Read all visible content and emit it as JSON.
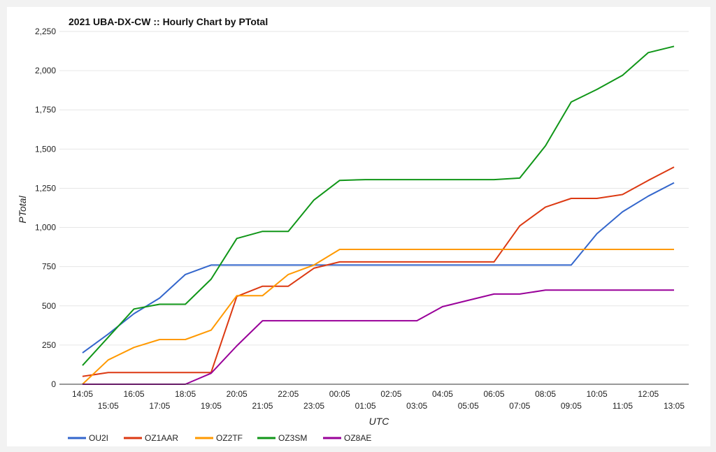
{
  "chart_data": {
    "type": "line",
    "title": "2021 UBA-DX-CW :: Hourly Chart by PTotal",
    "xlabel": "UTC",
    "ylabel": "PTotal",
    "ylim": [
      0,
      2250
    ],
    "yticks": [
      "0",
      "250",
      "500",
      "750",
      "1,000",
      "1,250",
      "1,500",
      "1,750",
      "2,000",
      "2,250"
    ],
    "grid": true,
    "legend_position": "bottom-left",
    "categories": [
      "14:05",
      "15:05",
      "16:05",
      "17:05",
      "18:05",
      "19:05",
      "20:05",
      "21:05",
      "22:05",
      "23:05",
      "00:05",
      "01:05",
      "02:05",
      "03:05",
      "04:05",
      "05:05",
      "06:05",
      "07:05",
      "08:05",
      "09:05",
      "10:05",
      "11:05",
      "12:05",
      "13:05"
    ],
    "series": [
      {
        "name": "OU2I",
        "color": "#3366cc",
        "values": [
          200,
          320,
          450,
          550,
          700,
          760,
          760,
          760,
          760,
          760,
          760,
          760,
          760,
          760,
          760,
          760,
          760,
          760,
          760,
          760,
          960,
          1100,
          1200,
          1285
        ]
      },
      {
        "name": "OZ1AAR",
        "color": "#dc3912",
        "values": [
          50,
          75,
          75,
          75,
          75,
          75,
          560,
          625,
          625,
          740,
          780,
          780,
          780,
          780,
          780,
          780,
          780,
          1010,
          1130,
          1185,
          1185,
          1210,
          1300,
          1385
        ]
      },
      {
        "name": "OZ2TF",
        "color": "#ff9900",
        "values": [
          0,
          155,
          235,
          285,
          285,
          345,
          565,
          565,
          700,
          760,
          860,
          860,
          860,
          860,
          860,
          860,
          860,
          860,
          860,
          860,
          860,
          860,
          860,
          860
        ]
      },
      {
        "name": "OZ3SM",
        "color": "#109618",
        "values": [
          120,
          300,
          480,
          510,
          510,
          670,
          930,
          975,
          975,
          1175,
          1300,
          1305,
          1305,
          1305,
          1305,
          1305,
          1305,
          1315,
          1520,
          1800,
          1880,
          1970,
          2115,
          2155
        ]
      },
      {
        "name": "OZ8AE",
        "color": "#990099",
        "values": [
          0,
          0,
          0,
          0,
          0,
          70,
          245,
          405,
          405,
          405,
          405,
          405,
          405,
          405,
          495,
          535,
          575,
          575,
          600,
          600,
          600,
          600,
          600,
          600
        ]
      }
    ]
  }
}
